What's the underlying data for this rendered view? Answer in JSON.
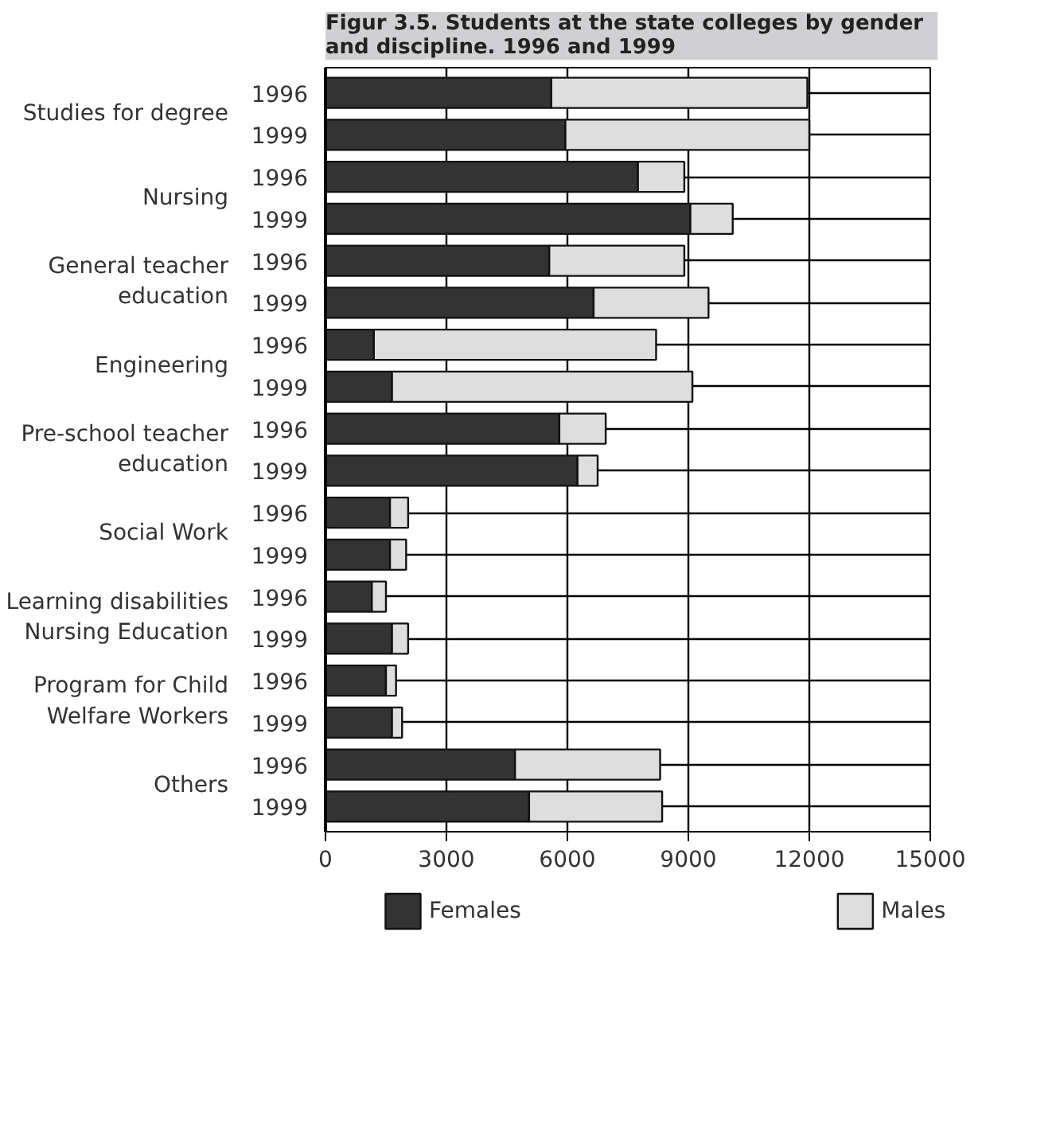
{
  "chart_data": {
    "type": "bar",
    "orientation": "horizontal",
    "stacked": true,
    "title": "Figur 3.5.   Students at the state colleges by gender\n                  and discipline. 1996 and 1999",
    "categories": [
      "1996",
      "1999",
      "1996",
      "1999",
      "1996",
      "1999",
      "1996",
      "1999",
      "1996",
      "1999",
      "1996",
      "1999",
      "1996",
      "1999",
      "1996",
      "1999",
      "1996",
      "1999"
    ],
    "annotations": [
      "Studies for degree",
      "Nursing",
      "General teacher\neducation",
      "Engineering",
      "Pre-school teacher\neducation",
      "Social Work",
      "Learning disabilities\nNursing Education",
      "Program for Child\nWelfare Workers",
      "Others"
    ],
    "series": [
      {
        "name": "Females",
        "color": "#333333",
        "values": [
          5600,
          5950,
          7750,
          9050,
          5550,
          6650,
          1200,
          1650,
          5800,
          6250,
          1600,
          1600,
          1150,
          1650,
          1500,
          1650,
          4700,
          5050
        ]
      },
      {
        "name": "Males",
        "color": "#dedede",
        "values": [
          6350,
          6050,
          1150,
          1050,
          3350,
          2850,
          7000,
          7450,
          1150,
          500,
          450,
          400,
          350,
          400,
          250,
          250,
          3600,
          3300
        ]
      }
    ],
    "xlim": [
      0,
      15000
    ],
    "xticks": [
      0,
      3000,
      6000,
      9000,
      12000,
      15000
    ],
    "grid": true,
    "legend": "bottom"
  }
}
